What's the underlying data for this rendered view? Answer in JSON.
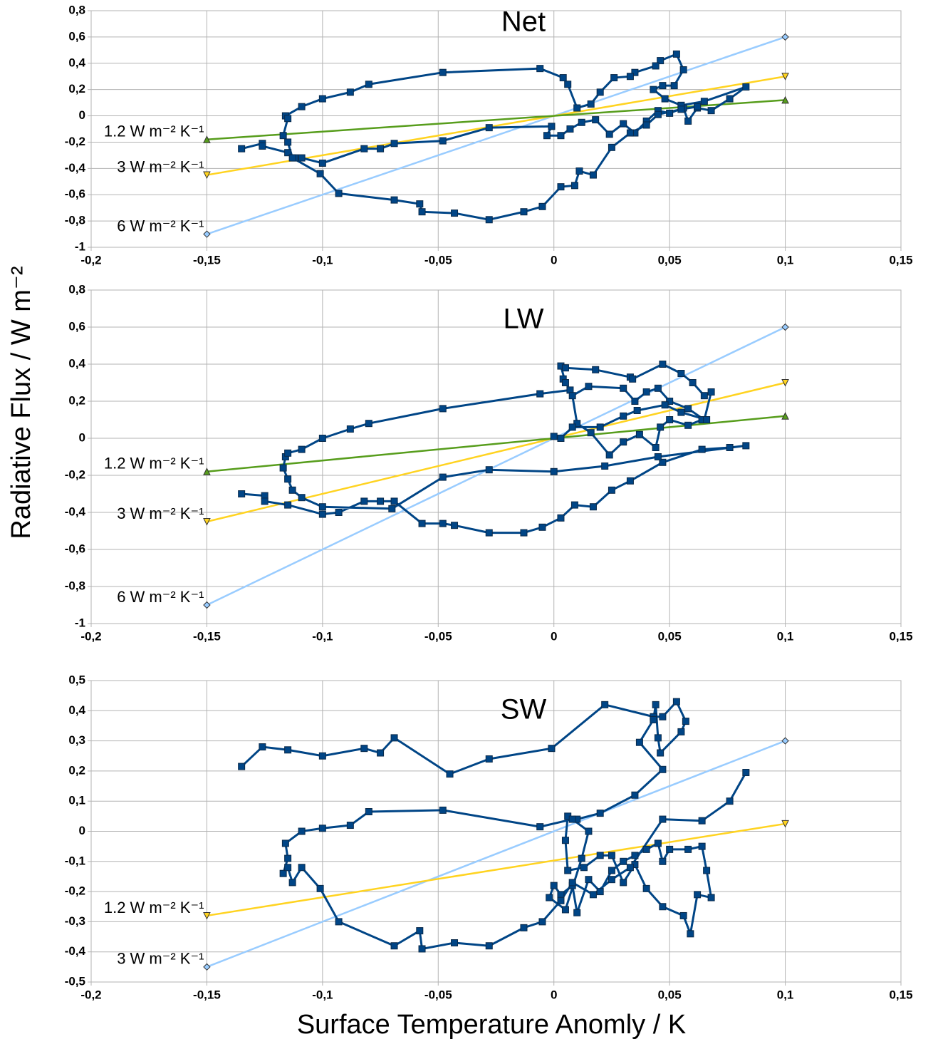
{
  "xlabel": "Surface Temperature Anomly / K",
  "ylabel": "Radiative Flux / W m⁻²",
  "chart_data": [
    {
      "type": "line",
      "title": "Net",
      "grid": true,
      "xlim": [
        -0.2,
        0.15
      ],
      "ylim": [
        -1,
        0.8
      ],
      "xticks": [
        {
          "value": -0.2,
          "label": "-0,2"
        },
        {
          "value": -0.15,
          "label": "-0,15"
        },
        {
          "value": -0.1,
          "label": "-0,1"
        },
        {
          "value": -0.05,
          "label": "-0,05"
        },
        0,
        {
          "value": 0.05,
          "label": "0,05"
        },
        {
          "value": 0.1,
          "label": "0,1"
        },
        {
          "value": 0.15,
          "label": "0,15"
        }
      ],
      "yticks": [
        {
          "value": 0.8,
          "label": "0,8"
        },
        {
          "value": 0.6,
          "label": "0,6"
        },
        {
          "value": 0.4,
          "label": "0,4"
        },
        {
          "value": 0.2,
          "label": "0,2"
        },
        0,
        {
          "value": -0.2,
          "label": "-0,2"
        },
        {
          "value": -0.4,
          "label": "-0,4"
        },
        {
          "value": -0.6,
          "label": "-0,6"
        },
        {
          "value": -0.8,
          "label": "-0,8"
        },
        -1
      ],
      "series": [
        {
          "color": "#004586",
          "marker": "square",
          "x": [
            -0.135,
            -0.126,
            -0.126,
            -0.115,
            -0.112,
            -0.109,
            -0.1,
            -0.082,
            -0.075,
            -0.069,
            -0.048,
            -0.028,
            -0.001,
            -0.003,
            0.003,
            0.007,
            0.012,
            0.018,
            0.024,
            0.03,
            0.035,
            0.04,
            0.045,
            0.05,
            0.056,
            0.058,
            0.062,
            0.068,
            0.076,
            0.083,
            0.065,
            0.055,
            0.048,
            0.043,
            0.047,
            0.052,
            0.056,
            0.053,
            0.046,
            0.044,
            0.035,
            0.033,
            0.026,
            0.02,
            0.016,
            0.01,
            0.006,
            0.004,
            -0.006,
            -0.048,
            -0.08,
            -0.088,
            -0.1,
            -0.109,
            -0.116,
            -0.115,
            -0.117,
            -0.115,
            -0.113,
            -0.101,
            -0.093,
            -0.069,
            -0.058,
            -0.057,
            -0.043,
            -0.028,
            -0.013,
            -0.005,
            0.003,
            0.009,
            0.011,
            0.017,
            0.025,
            0.033,
            0.04,
            0.045,
            0.055,
            0.062
          ],
          "values": [
            -0.25,
            -0.21,
            -0.23,
            -0.28,
            -0.32,
            -0.32,
            -0.36,
            -0.25,
            -0.25,
            -0.21,
            -0.19,
            -0.09,
            -0.08,
            -0.15,
            -0.15,
            -0.1,
            -0.05,
            -0.03,
            -0.14,
            -0.06,
            -0.13,
            -0.04,
            0.04,
            0.02,
            0.06,
            -0.04,
            0.06,
            0.04,
            0.13,
            0.22,
            0.11,
            0.08,
            0.13,
            0.2,
            0.23,
            0.23,
            0.35,
            0.47,
            0.42,
            0.38,
            0.33,
            0.3,
            0.29,
            0.18,
            0.09,
            0.06,
            0.24,
            0.29,
            0.36,
            0.33,
            0.24,
            0.18,
            0.13,
            0.07,
            0.0,
            -0.02,
            -0.15,
            -0.2,
            -0.32,
            -0.44,
            -0.59,
            -0.64,
            -0.67,
            -0.73,
            -0.74,
            -0.79,
            -0.73,
            -0.69,
            -0.54,
            -0.53,
            -0.42,
            -0.45,
            -0.24,
            -0.13,
            -0.07,
            0.01,
            0.05,
            0.07
          ]
        },
        {
          "name": "6 W m⁻² K⁻¹",
          "color": "#99ccff",
          "marker": "diamond",
          "x": [
            -0.15,
            0.1
          ],
          "values": [
            -0.9,
            0.6
          ]
        },
        {
          "name": "3 W m⁻² K⁻¹",
          "color": "#ffd320",
          "marker": "triangle-down",
          "x": [
            -0.15,
            0.1
          ],
          "values": [
            -0.45,
            0.3
          ]
        },
        {
          "name": "1.2 W m⁻² K⁻¹",
          "color": "#579d1c",
          "marker": "triangle-up",
          "x": [
            -0.15,
            0.1
          ],
          "values": [
            -0.18,
            0.12
          ]
        }
      ]
    },
    {
      "type": "line",
      "title": "LW",
      "grid": true,
      "xlim": [
        -0.2,
        0.15
      ],
      "ylim": [
        -1,
        0.8
      ],
      "xticks": [
        {
          "value": -0.2,
          "label": "-0,2"
        },
        {
          "value": -0.15,
          "label": "-0,15"
        },
        {
          "value": -0.1,
          "label": "-0,1"
        },
        {
          "value": -0.05,
          "label": "-0,05"
        },
        0,
        {
          "value": 0.05,
          "label": "0,05"
        },
        {
          "value": 0.1,
          "label": "0,1"
        },
        {
          "value": 0.15,
          "label": "0,15"
        }
      ],
      "yticks": [
        {
          "value": 0.8,
          "label": "0,8"
        },
        {
          "value": 0.6,
          "label": "0,6"
        },
        {
          "value": 0.4,
          "label": "0,4"
        },
        {
          "value": 0.2,
          "label": "0,2"
        },
        0,
        {
          "value": -0.2,
          "label": "-0,2"
        },
        {
          "value": -0.4,
          "label": "-0,4"
        },
        {
          "value": -0.6,
          "label": "-0,6"
        },
        {
          "value": -0.8,
          "label": "-0,8"
        },
        -1
      ],
      "series": [
        {
          "color": "#004586",
          "marker": "square",
          "x": [
            -0.135,
            -0.125,
            -0.125,
            -0.115,
            -0.1,
            -0.093,
            -0.082,
            -0.075,
            -0.069,
            -0.057,
            -0.048,
            -0.043,
            -0.028,
            -0.013,
            -0.005,
            0.003,
            0.009,
            0.017,
            0.025,
            0.033,
            0.047,
            0.064,
            0.076,
            0.083,
            0.045,
            0.022,
            0,
            -0.028,
            -0.048,
            -0.07,
            -0.1,
            -0.109,
            -0.113,
            -0.115,
            -0.117,
            -0.116,
            -0.115,
            -0.109,
            -0.1,
            -0.088,
            -0.08,
            -0.048,
            -0.006,
            0.007,
            0.004,
            0.005,
            0.003,
            0.005,
            0.018,
            0.033,
            0.034,
            0.047,
            0.055,
            0.06,
            0.065,
            0.068,
            0.065,
            0.058,
            0.05,
            0.045,
            0.04,
            0.035,
            0.03,
            0.015,
            0.008,
            0.01,
            0.016,
            0.024,
            0.03,
            0.037,
            0.044,
            0.046,
            0.05,
            0.058,
            0.064,
            0.066,
            0.055,
            0.048,
            0.036,
            0.03,
            0.02,
            0.008,
            0.003,
            0
          ],
          "values": [
            -0.3,
            -0.31,
            -0.34,
            -0.36,
            -0.41,
            -0.4,
            -0.34,
            -0.34,
            -0.34,
            -0.46,
            -0.46,
            -0.47,
            -0.51,
            -0.51,
            -0.48,
            -0.43,
            -0.36,
            -0.37,
            -0.28,
            -0.23,
            -0.13,
            -0.06,
            -0.05,
            -0.04,
            -0.1,
            -0.15,
            -0.18,
            -0.17,
            -0.21,
            -0.38,
            -0.37,
            -0.32,
            -0.28,
            -0.22,
            -0.16,
            -0.1,
            -0.08,
            -0.06,
            0.0,
            0.05,
            0.08,
            0.16,
            0.24,
            0.26,
            0.32,
            0.3,
            0.39,
            0.38,
            0.37,
            0.33,
            0.32,
            0.4,
            0.35,
            0.3,
            0.23,
            0.25,
            0.1,
            0.16,
            0.2,
            0.27,
            0.25,
            0.2,
            0.27,
            0.28,
            0.23,
            0.08,
            0.03,
            -0.09,
            -0.02,
            0.02,
            -0.05,
            0.06,
            0.1,
            0.07,
            0.1,
            0.1,
            0.14,
            0.18,
            0.15,
            0.12,
            0.06,
            0.06,
            0.0,
            0.01
          ]
        },
        {
          "name": "6 W m⁻² K⁻¹",
          "color": "#99ccff",
          "marker": "diamond",
          "x": [
            -0.15,
            0.1
          ],
          "values": [
            -0.9,
            0.6
          ]
        },
        {
          "name": "3 W m⁻² K⁻¹",
          "color": "#ffd320",
          "marker": "triangle-down",
          "x": [
            -0.15,
            0.1
          ],
          "values": [
            -0.45,
            0.3
          ]
        },
        {
          "name": "1.2 W m⁻² K⁻¹",
          "color": "#579d1c",
          "marker": "triangle-up",
          "x": [
            -0.15,
            0.1
          ],
          "values": [
            -0.18,
            0.12
          ]
        }
      ]
    },
    {
      "type": "line",
      "title": "SW",
      "grid": true,
      "xlim": [
        -0.2,
        0.15
      ],
      "ylim": [
        -0.5,
        0.5
      ],
      "xticks": [
        {
          "value": -0.2,
          "label": "-0,2"
        },
        {
          "value": -0.15,
          "label": "-0,15"
        },
        {
          "value": -0.1,
          "label": "-0,1"
        },
        {
          "value": -0.05,
          "label": "-0,05"
        },
        0,
        {
          "value": 0.05,
          "label": "0,05"
        },
        {
          "value": 0.1,
          "label": "0,1"
        },
        {
          "value": 0.15,
          "label": "0,15"
        }
      ],
      "yticks": [
        {
          "value": 0.5,
          "label": "0,5"
        },
        {
          "value": 0.4,
          "label": "0,4"
        },
        {
          "value": 0.3,
          "label": "0,3"
        },
        {
          "value": 0.2,
          "label": "0,2"
        },
        {
          "value": 0.1,
          "label": "0,1"
        },
        0,
        {
          "value": -0.1,
          "label": "-0,1"
        },
        {
          "value": -0.2,
          "label": "-0,2"
        },
        {
          "value": -0.3,
          "label": "-0,3"
        },
        {
          "value": -0.4,
          "label": "-0,4"
        },
        {
          "value": -0.5,
          "label": "-0,5"
        }
      ],
      "series": [
        {
          "color": "#004586",
          "marker": "square",
          "x": [
            -0.135,
            -0.126,
            -0.115,
            -0.1,
            -0.082,
            -0.075,
            -0.069,
            -0.045,
            -0.028,
            -0.001,
            0.022,
            0.043,
            0.047,
            0.053,
            0.057,
            0.055,
            0.046,
            0.045,
            0.044,
            0.043,
            0.037,
            0.047,
            0.035,
            0.02,
            0.01,
            0.006,
            0.005,
            0.006,
            0.013,
            0.02,
            0.025,
            0.03,
            0.035,
            0.04,
            0.047,
            0.056,
            0.059,
            0.062,
            0.068,
            0.066,
            0.064,
            0.058,
            0.05,
            0.047,
            0.045,
            0.04,
            0.035,
            0.03,
            0.025,
            0.02,
            0.015,
            0.01,
            0.008,
            0.003,
            0.0,
            -0.002,
            0.005,
            0.012,
            0.015,
            0.008,
            -0.006,
            -0.048,
            -0.08,
            -0.088,
            -0.1,
            -0.109,
            -0.116,
            -0.115,
            -0.117,
            -0.115,
            -0.113,
            -0.109,
            -0.101,
            -0.093,
            -0.069,
            -0.058,
            -0.057,
            -0.043,
            -0.028,
            -0.013,
            -0.005,
            0.003,
            0.008,
            0.017,
            0.025,
            0.033,
            0.047,
            0.064,
            0.076,
            0.083
          ],
          "values": [
            0.215,
            0.28,
            0.27,
            0.25,
            0.275,
            0.26,
            0.31,
            0.19,
            0.24,
            0.275,
            0.42,
            0.38,
            0.38,
            0.43,
            0.365,
            0.33,
            0.26,
            0.31,
            0.42,
            0.37,
            0.295,
            0.205,
            0.12,
            0.06,
            0.04,
            0.05,
            -0.03,
            -0.13,
            -0.12,
            -0.08,
            -0.08,
            -0.17,
            -0.11,
            -0.19,
            -0.25,
            -0.28,
            -0.34,
            -0.21,
            -0.22,
            -0.13,
            -0.05,
            -0.06,
            -0.06,
            -0.1,
            -0.04,
            -0.06,
            -0.08,
            -0.1,
            -0.13,
            -0.2,
            -0.16,
            -0.27,
            -0.18,
            -0.21,
            -0.18,
            -0.22,
            -0.26,
            -0.09,
            0.0,
            0.04,
            0.015,
            0.07,
            0.065,
            0.02,
            0.01,
            0.0,
            -0.04,
            -0.09,
            -0.14,
            -0.12,
            -0.17,
            -0.12,
            -0.19,
            -0.3,
            -0.38,
            -0.33,
            -0.39,
            -0.37,
            -0.38,
            -0.32,
            -0.3,
            -0.23,
            -0.17,
            -0.21,
            -0.16,
            -0.12,
            0.04,
            0.035,
            0.1,
            0.195
          ]
        },
        {
          "name": "3 W m⁻² K⁻¹",
          "color": "#99ccff",
          "marker": "diamond",
          "x": [
            -0.15,
            0.1
          ],
          "values": [
            -0.45,
            0.3
          ]
        },
        {
          "name": "1.2 W m⁻² K⁻¹",
          "color": "#ffd320",
          "marker": "triangle-down",
          "x": [
            -0.15,
            0.1
          ],
          "values": [
            -0.28,
            0.025
          ]
        }
      ]
    }
  ]
}
